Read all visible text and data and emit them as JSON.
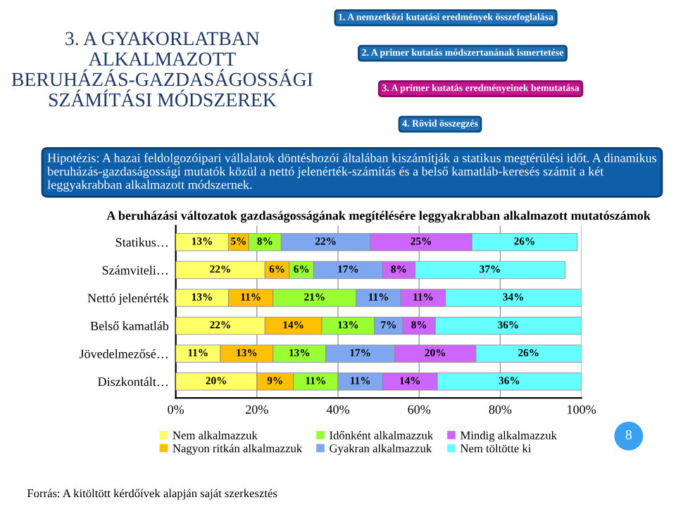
{
  "chart_data": {
    "type": "bar",
    "orientation": "horizontal",
    "stacked": true,
    "grid": "x",
    "legend": "bottom",
    "title": "A beruházási változatok gazdaságosságának megítélésére leggyakrabban alkalmazott mutatószámok",
    "categories": [
      "Statikus…",
      "Számviteli…",
      "Nettó jelenérték",
      "Belső kamatláb",
      "Jövedelmezősé…",
      "Diszkontált…"
    ],
    "series": [
      {
        "name": "Nem alkalmazzuk",
        "color": "#ffff66",
        "values": [
          13,
          22,
          13,
          22,
          11,
          20
        ],
        "value_labels": [
          "13%",
          "22%",
          "13%",
          "22%",
          "11%",
          "20%"
        ]
      },
      {
        "name": "Nagyon ritkán alkalmazzuk",
        "color": "#ffc000",
        "values": [
          5,
          6,
          11,
          14,
          13,
          9
        ],
        "value_labels": [
          "5%",
          "6%",
          "11%",
          "14%",
          "13%",
          "9%"
        ]
      },
      {
        "name": "Időnként alkalmazzuk",
        "color": "#99ff33",
        "values": [
          8,
          6,
          20.5,
          13,
          13,
          11
        ],
        "value_labels": [
          "8%",
          "6%",
          "21%",
          "13%",
          "13%",
          "11%"
        ]
      },
      {
        "name": "Gyakran alkalmazzuk",
        "color": "#7fa7f0",
        "values": [
          22,
          17,
          11,
          7,
          17,
          11
        ],
        "value_labels": [
          "22%",
          "17%",
          "11%",
          "7%",
          "17%",
          "11%"
        ]
      },
      {
        "name": "Mindig alkalmazzuk",
        "color": "#cc66ff",
        "values": [
          25,
          8,
          11,
          8,
          20,
          13.5
        ],
        "value_labels": [
          "25%",
          "8%",
          "11%",
          "8%",
          "20%",
          "14%"
        ]
      },
      {
        "name": "Nem töltötte ki",
        "color": "#66ffff",
        "values": [
          26,
          37,
          33.5,
          36,
          26,
          35.5
        ],
        "value_labels": [
          "26%",
          "37%",
          "34%",
          "36%",
          "26%",
          "36%"
        ]
      }
    ],
    "xlim": [
      0,
      100
    ],
    "xticks": [
      {
        "value": 0,
        "label": "0%"
      },
      {
        "value": 20,
        "label": "20%"
      },
      {
        "value": 40,
        "label": "40%"
      },
      {
        "value": 60,
        "label": "60%"
      },
      {
        "value": 80,
        "label": "80%"
      },
      {
        "value": 100,
        "label": "100%"
      }
    ],
    "annotations": [
      "3. A GYAKORLATBAN ALKALMAZOTT BERUHÁZÁS-GAZDASÁGOSSÁGI SZÁMÍTÁSI MÓDSZEREK",
      "1. A nemzetközi kutatási eredmények összefoglalása",
      "2. A primer kutatás módszertanának ismertetése",
      "3. A primer kutatás eredményeinek bemutatása",
      "4. Rövid összegzés",
      "Hipotézis: A hazai feldolgozóipari vállalatok döntéshozói általában kiszámítják a statikus megtérülési időt. A dinamikus beruházás-gazdaságossági mutatók közül a nettó jelenérték-számítás és a belső kamatláb-keresés számít a két leggyakrabban alkalmazott módszernek.",
      "Forrás: A kitöltött kérdőívek alapján saját szerkesztés",
      "8"
    ]
  }
}
